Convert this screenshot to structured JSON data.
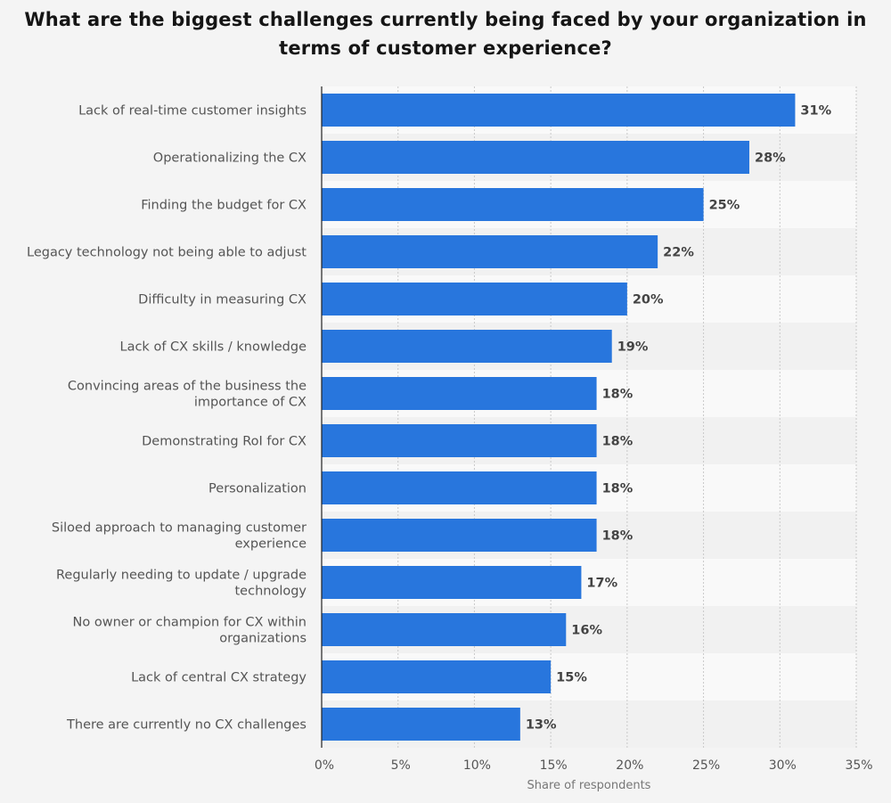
{
  "chart_data": {
    "type": "bar",
    "orientation": "horizontal",
    "title": "What are the biggest challenges currently being faced by your organization in terms of customer experience?",
    "xlabel": "Share of respondents",
    "ylabel": "",
    "categories": [
      "Lack of real-time customer insights",
      "Operationalizing the CX",
      "Finding the budget for CX",
      "Legacy technology not being able to adjust",
      "Difficulty in measuring CX",
      "Lack of CX skills / knowledge",
      "Convincing areas of the business the importance of CX",
      "Demonstrating RoI for CX",
      "Personalization",
      "Siloed approach to managing customer experience",
      "Regularly needing to update / upgrade technology",
      "No owner or champion for CX within organizations",
      "Lack of central CX strategy",
      "There are currently no CX challenges"
    ],
    "values": [
      31,
      28,
      25,
      22,
      20,
      19,
      18,
      18,
      18,
      18,
      17,
      16,
      15,
      13
    ],
    "value_labels": [
      "31%",
      "28%",
      "25%",
      "22%",
      "20%",
      "19%",
      "18%",
      "18%",
      "18%",
      "18%",
      "17%",
      "16%",
      "15%",
      "13%"
    ],
    "xlim": [
      0,
      35
    ],
    "xticks": [
      0,
      5,
      10,
      15,
      20,
      25,
      30,
      35
    ],
    "xtick_labels": [
      "0%",
      "5%",
      "10%",
      "15%",
      "20%",
      "25%",
      "30%",
      "35%"
    ],
    "grid": true,
    "legend": "none",
    "colors": {
      "bar": "#2876dd",
      "background": "#f4f4f4",
      "band_light": "#f9f9f9",
      "band_dark": "#f1f1f1"
    }
  }
}
